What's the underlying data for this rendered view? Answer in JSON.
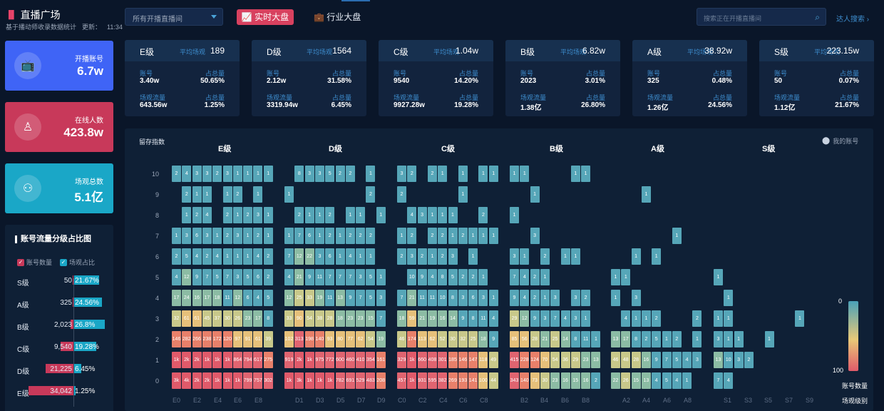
{
  "sidebar": {
    "title": "直播广场",
    "subtitle": "基于播动师收录数据统计",
    "update_label": "更新：",
    "update_time": "11:34",
    "cards": [
      {
        "label": "开播账号",
        "value": "6.7w",
        "color": "#3f64f6",
        "icon": "broadcast-icon",
        "glyph": "📺"
      },
      {
        "label": "在线人数",
        "value": "423.8w",
        "color": "#c8395a",
        "icon": "user-icon",
        "glyph": "♙"
      },
      {
        "label": "场观总数",
        "value": "5.1亿",
        "color": "#1aa7c7",
        "icon": "group-icon",
        "glyph": "⚇"
      }
    ]
  },
  "dist": {
    "title": "账号流量分级占比图",
    "legend_count": "账号数量",
    "legend_ratio": "场观占比",
    "rows": [
      {
        "grade": "S级",
        "count": "50",
        "ratio": "21.67%",
        "cr": 0.001,
        "pr": 0.2167
      },
      {
        "grade": "A级",
        "count": "325",
        "ratio": "24.56%",
        "cr": 0.01,
        "pr": 0.2456
      },
      {
        "grade": "B级",
        "count": "2,023",
        "ratio": "26.8%",
        "cr": 0.06,
        "pr": 0.268
      },
      {
        "grade": "C级",
        "count": "9,540",
        "ratio": "19.28%",
        "cr": 0.28,
        "pr": 0.1928
      },
      {
        "grade": "D级",
        "count": "21,225",
        "ratio": "6.45%",
        "cr": 0.62,
        "pr": 0.0645
      },
      {
        "grade": "E级",
        "count": "34,042",
        "ratio": "1.25%",
        "cr": 1.0,
        "pr": 0.0125
      }
    ]
  },
  "topbar": {
    "select_placeholder": "所有开播直播间",
    "tab_realtime": "实时大盘",
    "tab_industry": "行业大盘",
    "search_placeholder": "搜索正在开播直播间",
    "talent_search": "达人搜索 ›"
  },
  "levels": [
    {
      "name": "E级",
      "avg_label": "平均场观",
      "avg": "189",
      "acc_label": "账号",
      "acc": "3.40w",
      "share_label": "占总量",
      "acc_share": "50.65%",
      "flow_label": "场观流量",
      "flow": "643.56w",
      "flow_share": "1.25%"
    },
    {
      "name": "D级",
      "avg_label": "平均场观",
      "avg": "1564",
      "acc_label": "账号",
      "acc": "2.12w",
      "share_label": "占总量",
      "acc_share": "31.58%",
      "flow_label": "场观流量",
      "flow": "3319.94w",
      "flow_share": "6.45%"
    },
    {
      "name": "C级",
      "avg_label": "平均场观",
      "avg": "1.04w",
      "acc_label": "账号",
      "acc": "9540",
      "share_label": "占总量",
      "acc_share": "14.20%",
      "flow_label": "场观流量",
      "flow": "9927.28w",
      "flow_share": "19.28%"
    },
    {
      "name": "B级",
      "avg_label": "平均场观",
      "avg": "6.82w",
      "acc_label": "账号",
      "acc": "2023",
      "share_label": "占总量",
      "acc_share": "3.01%",
      "flow_label": "场观流量",
      "flow": "1.38亿",
      "flow_share": "26.80%"
    },
    {
      "name": "A级",
      "avg_label": "平均场观",
      "avg": "38.92w",
      "acc_label": "账号",
      "acc": "325",
      "share_label": "占总量",
      "acc_share": "0.48%",
      "flow_label": "场观流量",
      "flow": "1.26亿",
      "flow_share": "24.56%"
    },
    {
      "name": "S级",
      "avg_label": "平均场观",
      "avg": "223.15w",
      "acc_label": "账号",
      "acc": "50",
      "share_label": "占总量",
      "acc_share": "0.07%",
      "flow_label": "场观流量",
      "flow": "1.12亿",
      "flow_share": "21.67%"
    }
  ],
  "chart_data": {
    "type": "heatmap",
    "y_title": "留存指数",
    "my_account": "我的账号",
    "scale_min": "0",
    "scale_max": "100",
    "scale_title": "账号数量",
    "x_title": "场观级别",
    "groups": [
      "E级",
      "D级",
      "C级",
      "B级",
      "A级",
      "S级"
    ],
    "x_ticks": [
      "E0",
      "E2",
      "E4",
      "E6",
      "E8",
      "D1",
      "D3",
      "D5",
      "D7",
      "D9",
      "C0",
      "C2",
      "C4",
      "C6",
      "C8",
      "B2",
      "B4",
      "B6",
      "B8",
      "A2",
      "A4",
      "A6",
      "A8",
      "S1",
      "S3",
      "S5",
      "S7",
      "S9"
    ],
    "y_ticks": [
      "10",
      "9",
      "8",
      "7",
      "6",
      "5",
      "4",
      "3",
      "2",
      "1",
      "0"
    ],
    "rows": {
      "10": "2 4 3 3 2 3 1 1 1 1 | 0 8 3 3 5 2 2 0 1 0 | 3 2 0 2 1 0 1 0 1 1 | 1 1 0 0 0 0 1 1 0 0 | 0 0 0 0 0 0 0 0 0 0 | 0 0 0 0 0 0 0 0 0 0",
      "9": "0 2 1 1 0 1 2 0 1 0 | 1 0 0 0 0 0 0 0 2 0 | 2 0 0 0 0 0 1 0 0 0 | 0 0 1 0 0 0 0 0 0 0 | 0 0 0 1 0 0 0 0 0 0 | 0 0 0 0 0 0 0 0 0 0",
      "8": "0 1 2 4 0 2 1 2 3 1 | 0 2 1 1 2 0 1 1 0 1 | 0 4 3 1 1 1 0 0 2 0 | 1 0 0 0 0 0 0 0 0 0 | 0 0 0 0 0 0 0 0 0 0 | 0 0 0 0 0 0 0 0 0 0",
      "7": "1 3 6 3 1 2 3 1 2 1 | 1 7 6 1 2 1 2 2 2 0 | 1 2 0 2 2 1 2 1 1 1 | 0 0 3 0 0 0 0 0 0 0 | 0 0 0 0 0 0 1 0 0 0 | 0 0 0 0 0 0 0 0 0 0",
      "6": "2 5 4 2 4 1 1 1 4 2 | 7 12 22 3 6 1 4 1 1 0 | 2 3 2 1 2 3 0 1 0 0 | 3 1 0 2 0 1 1 0 0 0 | 0 0 1 0 1 0 0 0 0 0 | 0 0 0 0 0 0 0 0 0 0",
      "5": "4 12 9 7 5 7 3 5 6 2 | 4 21 9 11 7 7 7 3 5 1 | 0 10 9 4 8 5 2 2 1 0 | 7 4 2 1 0 0 0 0 0 0 | 1 1 0 0 0 0 0 0 0 0 | 1 0 0 0 0 0 0 0 0 0",
      "4": "17 24 16 17 18 11 12 6 4 5 | 12 25 33 19 11 13 9 7 5 3 | 7 21 11 11 10 8 3 6 3 1 | 9 4 2 1 3 0 3 2 0 0 | 1 0 3 0 0 0 0 0 0 0 | 0 1 0 0 0 0 0 0 0 0",
      "3": "32 61 61 45 37 30 26 23 17 8 | 33 90 54 38 28 18 23 23 15 7 | 18 59 21 19 16 14 9 8 11 4 | 29 12 9 3 7 4 3 1 0 0 | 0 4 1 1 2 0 0 0 2 0 | 1 1 0 0 0 0 0 0 1 0",
      "2": "146 282 266 238 172 120 97 91 61 39 | 102 313 198 140 93 80 77 62 54 19 | 46 174 113 62 52 30 32 25 18 9 | 85 56 28 21 25 14 8 11 1 0 | 13 17 8 2 5 1 2 0 1 0 | 3 1 1 0 0 1 0 0 0 0",
      "1": "1k 2k 2k 1k 1k 1k 864 794 617 275 | 919 2k 1k 975 772 600 460 410 354 161 | 329 1k 660 408 301 185 146 147 118 49 | 415 228 124 70 54 36 29 23 13 0 | 46 48 28 16 9 7 5 4 3 0 | 13 10 3 2 0 0 0 0 0 0",
      "0": "3k 4k 2k 2k 1k 1k 1k 799 757 302 | 1k 3k 1k 1k 1k 782 691 529 483 208 | 457 1k 931 595 382 269 193 141 100 44 | 343 140 73 30 23 16 15 16 2 0 | 22 26 15 13 4 5 4 1 0 0 | 7 4 0 0 0 0 0 0 0 0"
    }
  }
}
